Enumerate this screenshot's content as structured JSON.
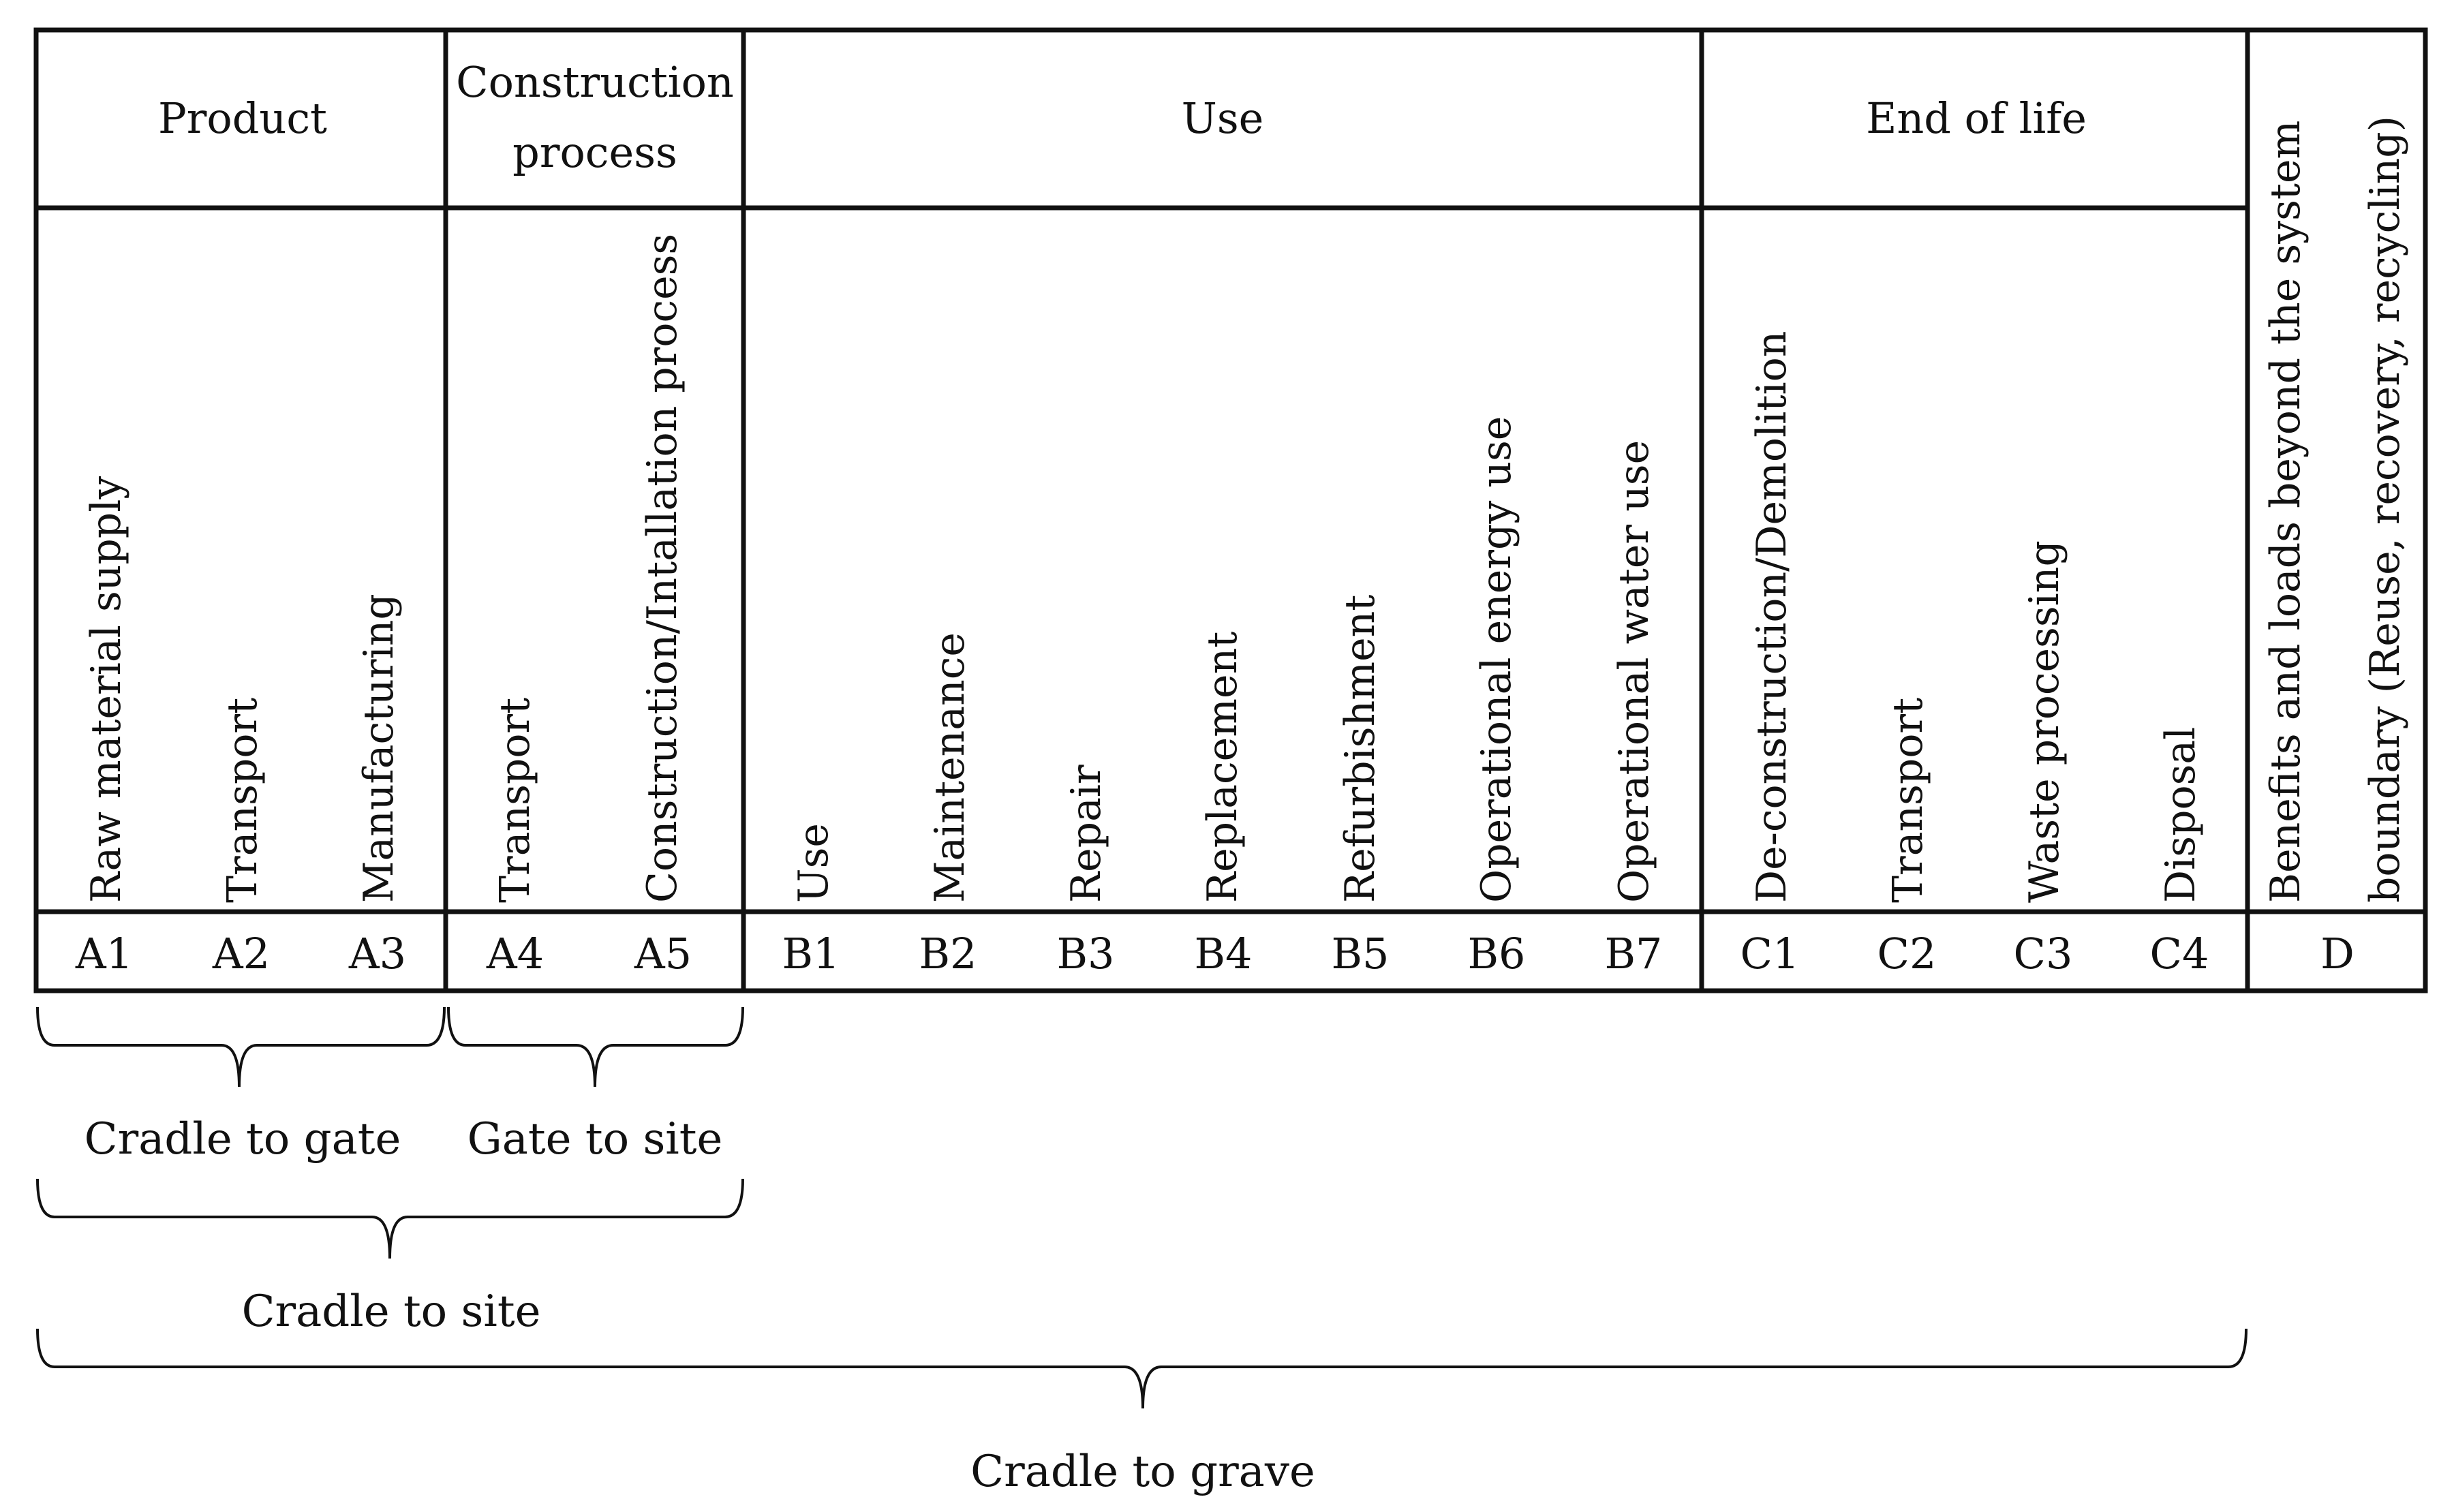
{
  "figure": {
    "groups": [
      {
        "id": "product",
        "title": [
          "Product"
        ]
      },
      {
        "id": "construction",
        "title": [
          "Construction",
          "process"
        ]
      },
      {
        "id": "use",
        "title": [
          "Use"
        ]
      },
      {
        "id": "end",
        "title": [
          "End of life"
        ]
      },
      {
        "id": "d",
        "title": [
          "Benefits and loads beyond the system",
          "boundary (Reuse, recovery, recycling)"
        ]
      }
    ],
    "stages": [
      {
        "code": "A1",
        "label": "Raw material supply"
      },
      {
        "code": "A2",
        "label": "Transport"
      },
      {
        "code": "A3",
        "label": "Manufacturing"
      },
      {
        "code": "A4",
        "label": "Transport"
      },
      {
        "code": "A5",
        "label": "Construction/Intallation process"
      },
      {
        "code": "B1",
        "label": "Use"
      },
      {
        "code": "B2",
        "label": "Maintenance"
      },
      {
        "code": "B3",
        "label": "Repair"
      },
      {
        "code": "B4",
        "label": "Replacement"
      },
      {
        "code": "B5",
        "label": "Refurbishment"
      },
      {
        "code": "B6",
        "label": "Operational energy use"
      },
      {
        "code": "B7",
        "label": "Operational water use"
      },
      {
        "code": "C1",
        "label": "De-construction/Demolition"
      },
      {
        "code": "C2",
        "label": "Transport"
      },
      {
        "code": "C3",
        "label": "Waste processing"
      },
      {
        "code": "C4",
        "label": "Disposal"
      },
      {
        "code": "D",
        "label": ""
      }
    ],
    "scopes": [
      {
        "id": "cradle-to-gate",
        "label": "Cradle to gate"
      },
      {
        "id": "gate-to-site",
        "label": "Gate to site"
      },
      {
        "id": "cradle-to-site",
        "label": "Cradle to site"
      },
      {
        "id": "cradle-to-grave",
        "label": "Cradle to grave"
      }
    ]
  }
}
